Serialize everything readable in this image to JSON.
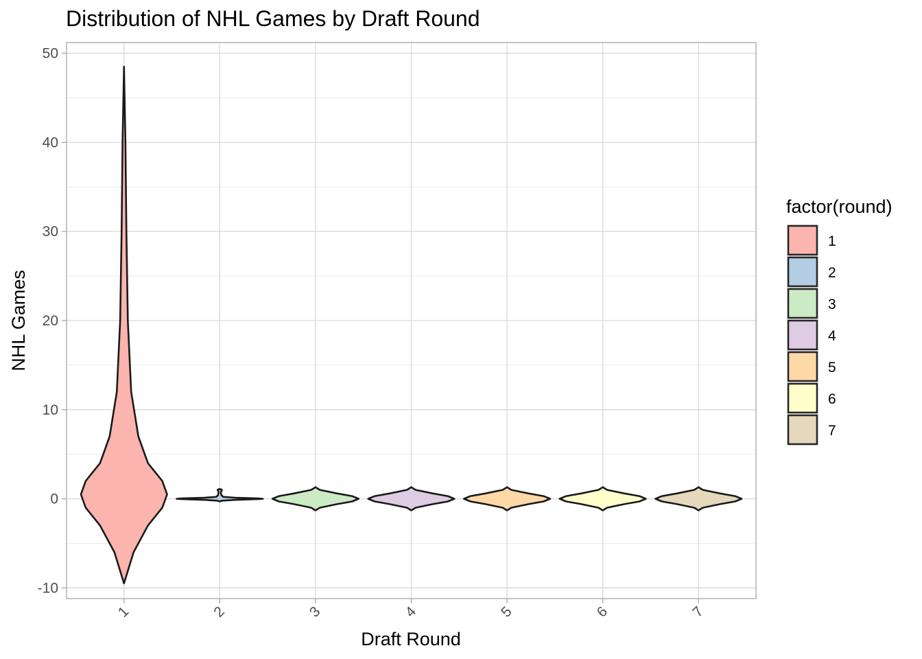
{
  "chart_data": {
    "type": "violin",
    "title": "Distribution of NHL Games by Draft Round",
    "xlabel": "Draft Round",
    "ylabel": "NHL Games",
    "ylim": [
      -11.2,
      51.2
    ],
    "yticks": [
      -10,
      0,
      10,
      20,
      30,
      40,
      50
    ],
    "categories": [
      "1",
      "2",
      "3",
      "4",
      "5",
      "6",
      "7"
    ],
    "grid": true,
    "legend": {
      "title": "factor(round)",
      "position": "right",
      "entries": [
        "1",
        "2",
        "3",
        "4",
        "5",
        "6",
        "7"
      ]
    },
    "series": [
      {
        "category": "1",
        "color": "#FBB4AE",
        "min": -9.5,
        "max": 48.5,
        "max_density": 0.9,
        "profile": [
          [
            -9.5,
            0
          ],
          [
            -6,
            0.2
          ],
          [
            -3,
            0.5
          ],
          [
            -1,
            0.8
          ],
          [
            0.5,
            0.9
          ],
          [
            2,
            0.8
          ],
          [
            4,
            0.5
          ],
          [
            7,
            0.3
          ],
          [
            12,
            0.15
          ],
          [
            20,
            0.08
          ],
          [
            30,
            0.05
          ],
          [
            40,
            0.03
          ],
          [
            48.5,
            0
          ]
        ]
      },
      {
        "category": "2",
        "color": "#B3CDE3",
        "min": -0.3,
        "max": 1.1,
        "max_density": 62,
        "profile": [
          [
            -0.3,
            0
          ],
          [
            -0.22,
            3
          ],
          [
            -0.12,
            22
          ],
          [
            -0.04,
            55
          ],
          [
            0,
            62
          ],
          [
            0.04,
            55
          ],
          [
            0.12,
            22
          ],
          [
            0.22,
            5
          ],
          [
            0.4,
            2.5
          ],
          [
            0.6,
            1.8
          ],
          [
            0.8,
            1.8
          ],
          [
            0.95,
            3
          ],
          [
            1.02,
            3
          ],
          [
            1.1,
            0
          ]
        ]
      },
      {
        "category": "3",
        "color": "#CCEBC5",
        "min": -1.3,
        "max": 1.3,
        "max_density": 10,
        "profile": [
          [
            -1.3,
            0
          ],
          [
            -1,
            1
          ],
          [
            -0.6,
            5
          ],
          [
            -0.3,
            8.5
          ],
          [
            0,
            10
          ],
          [
            0.3,
            8.5
          ],
          [
            0.6,
            5
          ],
          [
            1,
            1
          ],
          [
            1.3,
            0
          ]
        ]
      },
      {
        "category": "4",
        "color": "#DECBE4",
        "min": -1.3,
        "max": 1.3,
        "max_density": 10,
        "profile": [
          [
            -1.3,
            0
          ],
          [
            -1,
            1
          ],
          [
            -0.6,
            5
          ],
          [
            -0.3,
            8.5
          ],
          [
            0,
            10
          ],
          [
            0.3,
            8.5
          ],
          [
            0.6,
            5
          ],
          [
            1,
            1
          ],
          [
            1.3,
            0
          ]
        ]
      },
      {
        "category": "5",
        "color": "#FED9A6",
        "min": -1.3,
        "max": 1.3,
        "max_density": 10,
        "profile": [
          [
            -1.3,
            0
          ],
          [
            -1,
            1
          ],
          [
            -0.6,
            5
          ],
          [
            -0.3,
            8.5
          ],
          [
            0,
            10
          ],
          [
            0.3,
            8.5
          ],
          [
            0.6,
            5
          ],
          [
            1,
            1
          ],
          [
            1.3,
            0
          ]
        ]
      },
      {
        "category": "6",
        "color": "#FFFFCC",
        "min": -1.3,
        "max": 1.3,
        "max_density": 10,
        "profile": [
          [
            -1.3,
            0
          ],
          [
            -1,
            1
          ],
          [
            -0.6,
            5
          ],
          [
            -0.3,
            8.5
          ],
          [
            0,
            10
          ],
          [
            0.3,
            8.5
          ],
          [
            0.6,
            5
          ],
          [
            1,
            1
          ],
          [
            1.3,
            0
          ]
        ]
      },
      {
        "category": "7",
        "color": "#E5D8BD",
        "min": -1.3,
        "max": 1.3,
        "max_density": 10,
        "profile": [
          [
            -1.3,
            0
          ],
          [
            -1,
            1
          ],
          [
            -0.6,
            5
          ],
          [
            -0.3,
            8.5
          ],
          [
            0,
            10
          ],
          [
            0.3,
            8.5
          ],
          [
            0.6,
            5
          ],
          [
            1,
            1
          ],
          [
            1.3,
            0
          ]
        ]
      }
    ]
  }
}
